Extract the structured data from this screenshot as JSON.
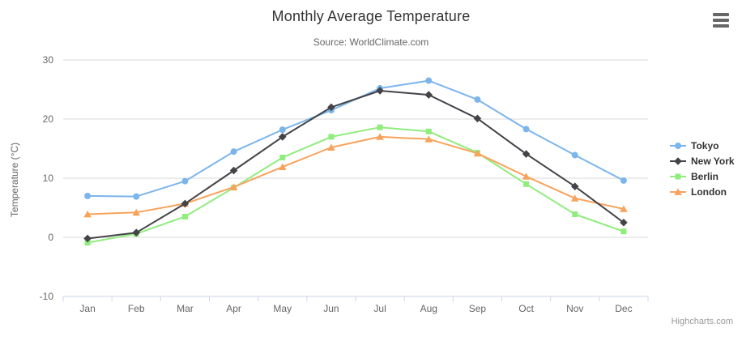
{
  "chart": {
    "title": "Monthly Average Temperature",
    "subtitle": "Source: WorldClimate.com",
    "credits": "Highcharts.com",
    "menu_icon": "hamburger-icon"
  },
  "chart_data": {
    "type": "line",
    "title": "Monthly Average Temperature",
    "subtitle": "Source: WorldClimate.com",
    "categories": [
      "Jan",
      "Feb",
      "Mar",
      "Apr",
      "May",
      "Jun",
      "Jul",
      "Aug",
      "Sep",
      "Oct",
      "Nov",
      "Dec"
    ],
    "series": [
      {
        "name": "Tokyo",
        "marker": "circle",
        "color": "#7cb5ec",
        "values": [
          7.0,
          6.9,
          9.5,
          14.5,
          18.2,
          21.5,
          25.2,
          26.5,
          23.3,
          18.3,
          13.9,
          9.6
        ]
      },
      {
        "name": "New York",
        "marker": "diamond",
        "color": "#434348",
        "values": [
          -0.2,
          0.8,
          5.7,
          11.3,
          17.0,
          22.0,
          24.8,
          24.1,
          20.1,
          14.1,
          8.6,
          2.5
        ]
      },
      {
        "name": "Berlin",
        "marker": "square",
        "color": "#90ed7d",
        "values": [
          -0.9,
          0.6,
          3.5,
          8.4,
          13.5,
          17.0,
          18.6,
          17.9,
          14.3,
          9.0,
          3.9,
          1.0
        ]
      },
      {
        "name": "London",
        "marker": "triangle",
        "color": "#f7a35c",
        "values": [
          3.9,
          4.2,
          5.7,
          8.5,
          11.9,
          15.2,
          17.0,
          16.6,
          14.2,
          10.3,
          6.6,
          4.8
        ]
      }
    ],
    "draw_order": [
      0,
      2,
      3,
      1
    ],
    "xlabel": "",
    "ylabel": "Temperature (°C)",
    "ylim": [
      -10,
      30
    ],
    "yticks": [
      -10,
      0,
      10,
      20,
      30
    ],
    "grid": true,
    "legend_position": "right",
    "colors": {
      "grid_line": "#d8d8d8",
      "axis_line": "#ccd6eb",
      "tick": "#ccd6eb",
      "axis_label": "#666666",
      "title_text": "#333333",
      "legend_text": "#333333",
      "credits_text": "#999999"
    }
  }
}
